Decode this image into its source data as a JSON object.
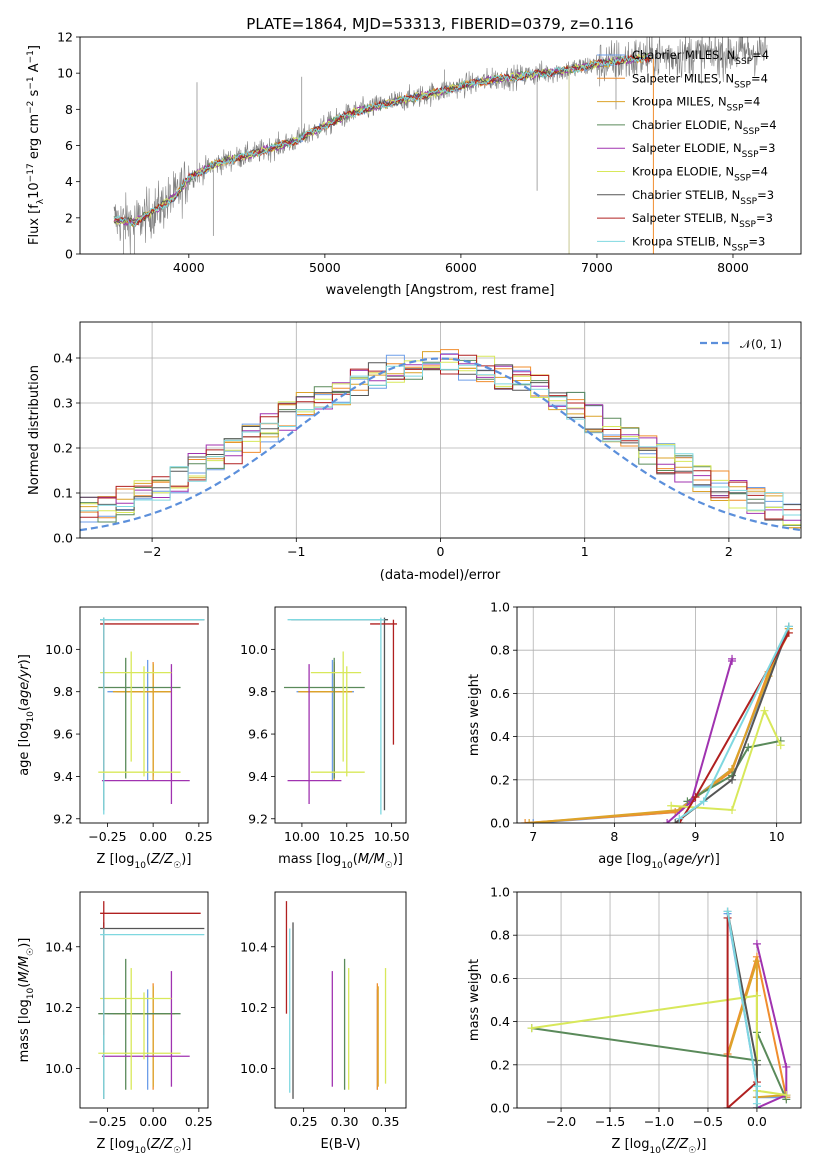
{
  "figure_title": "PLATE=1864, MJD=53313, FIBERID=0379, z=0.116",
  "colors": {
    "Chabrier MILES": "#6d9ee8",
    "Salpeter MILES": "#f08d2e",
    "Kroupa MILES": "#dca32a",
    "Chabrier ELODIE": "#5a8a5a",
    "Salpeter ELODIE": "#a033b0",
    "Kroupa ELODIE": "#d8e85a",
    "Chabrier STELIB": "#555555",
    "Salpeter STELIB": "#b02020",
    "Kroupa STELIB": "#7fd8e0",
    "data": "#808080",
    "gaussian": "#5b8fdb"
  },
  "chart_data": [
    {
      "name": "spectrum",
      "type": "line",
      "title": "PLATE=1864, MJD=53313, FIBERID=0379, z=0.116",
      "xlabel": "wavelength [Angstrom, rest frame]",
      "ylabel": "Flux [f_λ 10^-17 erg cm^-2 s^-1 A^-1]",
      "xlim": [
        3200,
        8500
      ],
      "ylim": [
        0,
        12
      ],
      "xticks": [
        "4000",
        "5000",
        "6000",
        "7000",
        "8000"
      ],
      "yticks": [
        "0",
        "2",
        "4",
        "6",
        "8",
        "10",
        "12"
      ],
      "legend_position": "right",
      "legend": [
        "Chabrier MILES, N_SSP=4",
        "Salpeter MILES, N_SSP=4",
        "Kroupa MILES, N_SSP=4",
        "Chabrier ELODIE, N_SSP=4",
        "Salpeter ELODIE, N_SSP=3",
        "Kroupa ELODIE, N_SSP=4",
        "Chabrier STELIB, N_SSP=3",
        "Salpeter STELIB, N_SSP=3",
        "Kroupa STELIB, N_SSP=3"
      ],
      "model_continuum": {
        "x": [
          3450,
          3600,
          3750,
          3900,
          4000,
          4200,
          4500,
          4800,
          5000,
          5200,
          5500,
          5800,
          6000,
          6200,
          6500,
          6800,
          7000,
          7200,
          7400
        ],
        "y": [
          1.9,
          1.75,
          2.4,
          3.2,
          4.2,
          5.0,
          5.6,
          6.3,
          7.1,
          7.8,
          8.4,
          8.9,
          9.3,
          9.6,
          9.9,
          10.2,
          10.5,
          10.7,
          10.9
        ]
      },
      "observed_x_range": [
        3450,
        8250
      ]
    },
    {
      "name": "residuals",
      "type": "line",
      "xlabel": "(data-model)/error",
      "ylabel": "Normed distribution",
      "xlim": [
        -2.5,
        2.5
      ],
      "ylim": [
        0,
        0.48
      ],
      "xticks": [
        "−2",
        "−1",
        "0",
        "1",
        "2"
      ],
      "yticks": [
        "0.0",
        "0.1",
        "0.2",
        "0.3",
        "0.4"
      ],
      "legend": [
        "𝒩(0, 1)"
      ],
      "legend_position": "top-right",
      "gaussian": {
        "mean": 0,
        "sigma": 1
      },
      "grid": true
    },
    {
      "name": "age-vs-Z",
      "type": "scatter",
      "xlabel": "Z [log10(Z/Z☉)]",
      "ylabel": "age [log10(age/yr)]",
      "xlim": [
        -0.4,
        0.3
      ],
      "ylim": [
        9.18,
        10.2
      ],
      "xticks": [
        "−0.25",
        "0.00",
        "0.25"
      ],
      "yticks": [
        "9.2",
        "9.4",
        "9.6",
        "9.8",
        "10.0"
      ],
      "points": [
        {
          "model": "Chabrier MILES",
          "x": -0.03,
          "y": 9.8,
          "xerr": [
            0.22,
            0.12
          ],
          "yerr": [
            0.42,
            0.15
          ]
        },
        {
          "model": "Salpeter MILES",
          "x": 0.0,
          "y": 9.8,
          "xerr": [
            0.2,
            0.1
          ],
          "yerr": [
            0.4,
            0.14
          ]
        },
        {
          "model": "Kroupa MILES",
          "x": 0.0,
          "y": 9.8,
          "xerr": [
            0.22,
            0.1
          ],
          "yerr": [
            0.42,
            0.13
          ]
        },
        {
          "model": "Chabrier ELODIE",
          "x": -0.15,
          "y": 9.82,
          "xerr": [
            0.15,
            0.3
          ],
          "yerr": [
            0.43,
            0.14
          ]
        },
        {
          "model": "Salpeter ELODIE",
          "x": 0.1,
          "y": 9.38,
          "xerr": [
            0.38,
            0.1
          ],
          "yerr": [
            0.11,
            0.55
          ]
        },
        {
          "model": "Kroupa ELODIE",
          "x": -0.12,
          "y": 9.89,
          "xerr": [
            0.17,
            0.22
          ],
          "yerr": [
            0.42,
            0.1
          ]
        },
        {
          "model": "Chabrier STELIB",
          "x": -0.27,
          "y": 10.14,
          "xerr": [
            0.02,
            0.55
          ],
          "yerr": [
            0.9,
            0.01
          ]
        },
        {
          "model": "Salpeter STELIB",
          "x": -0.27,
          "y": 10.12,
          "xerr": [
            0.02,
            0.52
          ],
          "yerr": [
            0.73,
            0.02
          ]
        },
        {
          "model": "Kroupa STELIB",
          "x": -0.27,
          "y": 10.14,
          "xerr": [
            0.02,
            0.55
          ],
          "yerr": [
            0.92,
            0.01
          ]
        },
        {
          "model": "Kroupa ELODIE",
          "x": -0.05,
          "y": 9.42,
          "xerr": [
            0.25,
            0.2
          ],
          "yerr": [
            0.02,
            0.5
          ]
        }
      ]
    },
    {
      "name": "age-vs-mass",
      "type": "scatter",
      "xlabel": "mass [log10(M/M☉)]",
      "ylabel": "",
      "xlim": [
        9.85,
        10.58
      ],
      "ylim": [
        9.18,
        10.2
      ],
      "xticks": [
        "10.00",
        "10.25",
        "10.50"
      ],
      "yticks": [
        "9.2",
        "9.4",
        "9.6",
        "9.8",
        "10.0"
      ],
      "points": [
        {
          "model": "Chabrier MILES",
          "x": 10.17,
          "y": 9.8,
          "xerr": [
            0.2,
            0.12
          ],
          "yerr": [
            0.42,
            0.15
          ]
        },
        {
          "model": "Salpeter MILES",
          "x": 10.18,
          "y": 9.8,
          "xerr": [
            0.2,
            0.1
          ],
          "yerr": [
            0.4,
            0.14
          ]
        },
        {
          "model": "Kroupa MILES",
          "x": 10.18,
          "y": 9.8,
          "xerr": [
            0.2,
            0.1
          ],
          "yerr": [
            0.42,
            0.13
          ]
        },
        {
          "model": "Chabrier ELODIE",
          "x": 10.18,
          "y": 9.82,
          "xerr": [
            0.28,
            0.17
          ],
          "yerr": [
            0.43,
            0.14
          ]
        },
        {
          "model": "Salpeter ELODIE",
          "x": 10.04,
          "y": 9.38,
          "xerr": [
            0.12,
            0.18
          ],
          "yerr": [
            0.11,
            0.55
          ]
        },
        {
          "model": "Kroupa ELODIE",
          "x": 10.23,
          "y": 9.89,
          "xerr": [
            0.18,
            0.1
          ],
          "yerr": [
            0.42,
            0.1
          ]
        },
        {
          "model": "Chabrier STELIB",
          "x": 10.46,
          "y": 10.14,
          "xerr": [
            0.52,
            0.02
          ],
          "yerr": [
            0.9,
            0.01
          ]
        },
        {
          "model": "Salpeter STELIB",
          "x": 10.51,
          "y": 10.12,
          "xerr": [
            0.13,
            0.02
          ],
          "yerr": [
            0.57,
            0.02
          ]
        },
        {
          "model": "Kroupa STELIB",
          "x": 10.44,
          "y": 10.14,
          "xerr": [
            0.52,
            0.02
          ],
          "yerr": [
            0.92,
            0.01
          ]
        },
        {
          "model": "Kroupa ELODIE",
          "x": 10.25,
          "y": 9.42,
          "xerr": [
            0.2,
            0.1
          ],
          "yerr": [
            0.02,
            0.5
          ]
        }
      ]
    },
    {
      "name": "mass-weight-vs-age",
      "type": "line",
      "xlabel": "age [log10(age/yr)]",
      "ylabel": "mass weight",
      "xlim": [
        6.8,
        10.3
      ],
      "ylim": [
        0,
        1.0
      ],
      "xticks": [
        "7",
        "8",
        "9",
        "10"
      ],
      "yticks": [
        "0.0",
        "0.2",
        "0.4",
        "0.6",
        "0.8",
        "1.0"
      ],
      "grid": true,
      "series": [
        {
          "model": "Chabrier MILES",
          "x": [
            7.0,
            8.75,
            9.45,
            10.15
          ],
          "y": [
            0.0,
            0.05,
            0.25,
            0.9
          ]
        },
        {
          "model": "Salpeter MILES",
          "x": [
            6.9,
            8.75,
            9.45,
            9.9,
            10.15
          ],
          "y": [
            0.0,
            0.05,
            0.24,
            0.7,
            0.88
          ]
        },
        {
          "model": "Kroupa MILES",
          "x": [
            6.95,
            8.8,
            9.45,
            9.9,
            10.15
          ],
          "y": [
            0.0,
            0.06,
            0.25,
            0.68,
            0.9
          ]
        },
        {
          "model": "Chabrier ELODIE",
          "x": [
            8.9,
            9.45,
            9.65,
            10.05
          ],
          "y": [
            0.1,
            0.22,
            0.35,
            0.38
          ]
        },
        {
          "model": "Salpeter ELODIE",
          "x": [
            8.65,
            8.95,
            9.45,
            9.45
          ],
          "y": [
            0.0,
            0.1,
            0.76,
            0.75
          ]
        },
        {
          "model": "Kroupa ELODIE",
          "x": [
            8.7,
            9.45,
            9.85,
            10.05
          ],
          "y": [
            0.08,
            0.06,
            0.52,
            0.36
          ]
        },
        {
          "model": "Chabrier STELIB",
          "x": [
            8.75,
            9.45,
            10.15
          ],
          "y": [
            0.0,
            0.2,
            0.91
          ]
        },
        {
          "model": "Salpeter STELIB",
          "x": [
            8.8,
            9.0,
            10.15
          ],
          "y": [
            0.0,
            0.12,
            0.88
          ]
        },
        {
          "model": "Kroupa STELIB",
          "x": [
            8.8,
            9.1,
            10.15
          ],
          "y": [
            0.02,
            0.1,
            0.91
          ]
        }
      ]
    },
    {
      "name": "mass-vs-Z",
      "type": "scatter",
      "xlabel": "Z [log10(Z/Z☉)]",
      "ylabel": "mass [log10(M/M☉)]",
      "xlim": [
        -0.4,
        0.3
      ],
      "ylim": [
        9.87,
        10.58
      ],
      "xticks": [
        "−0.25",
        "0.00",
        "0.25"
      ],
      "yticks": [
        "10.0",
        "10.2",
        "10.4"
      ],
      "points": [
        {
          "model": "Chabrier MILES",
          "x": -0.03,
          "y": 10.18,
          "xerr": [
            0.22,
            0.12
          ],
          "yerr": [
            0.25,
            0.08
          ]
        },
        {
          "model": "Salpeter MILES",
          "x": 0.0,
          "y": 10.18,
          "xerr": [
            0.2,
            0.12
          ],
          "yerr": [
            0.25,
            0.1
          ]
        },
        {
          "model": "Kroupa MILES",
          "x": 0.0,
          "y": 10.18,
          "xerr": [
            0.22,
            0.1
          ],
          "yerr": [
            0.24,
            0.09
          ]
        },
        {
          "model": "Chabrier ELODIE",
          "x": -0.15,
          "y": 10.18,
          "xerr": [
            0.15,
            0.3
          ],
          "yerr": [
            0.25,
            0.18
          ]
        },
        {
          "model": "Salpeter ELODIE",
          "x": 0.1,
          "y": 10.04,
          "xerr": [
            0.38,
            0.1
          ],
          "yerr": [
            0.1,
            0.28
          ]
        },
        {
          "model": "Kroupa ELODIE",
          "x": -0.12,
          "y": 10.23,
          "xerr": [
            0.17,
            0.22
          ],
          "yerr": [
            0.3,
            0.1
          ]
        },
        {
          "model": "Chabrier STELIB",
          "x": -0.27,
          "y": 10.46,
          "xerr": [
            0.02,
            0.55
          ],
          "yerr": [
            0.56,
            0.02
          ]
        },
        {
          "model": "Salpeter STELIB",
          "x": -0.27,
          "y": 10.51,
          "xerr": [
            0.02,
            0.53
          ],
          "yerr": [
            0.4,
            0.04
          ]
        },
        {
          "model": "Kroupa STELIB",
          "x": -0.27,
          "y": 10.44,
          "xerr": [
            0.02,
            0.55
          ],
          "yerr": [
            0.54,
            0.02
          ]
        },
        {
          "model": "Kroupa ELODIE",
          "x": -0.05,
          "y": 10.05,
          "xerr": [
            0.25,
            0.2
          ],
          "yerr": [
            0.02,
            0.2
          ]
        }
      ]
    },
    {
      "name": "mass-vs-ebv",
      "type": "scatter",
      "xlabel": "E(B-V)",
      "ylabel": "",
      "xlim": [
        0.215,
        0.375
      ],
      "ylim": [
        9.87,
        10.58
      ],
      "xticks": [
        "0.25",
        "0.30",
        "0.35"
      ],
      "yticks": [
        "10.0",
        "10.2",
        "10.4"
      ],
      "points": [
        {
          "model": "Chabrier MILES",
          "x": 0.34,
          "y": 10.18,
          "yerr": [
            0.25,
            0.08
          ]
        },
        {
          "model": "Salpeter MILES",
          "x": 0.34,
          "y": 10.18,
          "yerr": [
            0.25,
            0.1
          ]
        },
        {
          "model": "Kroupa MILES",
          "x": 0.341,
          "y": 10.18,
          "yerr": [
            0.24,
            0.09
          ]
        },
        {
          "model": "Chabrier ELODIE",
          "x": 0.3,
          "y": 10.18,
          "yerr": [
            0.25,
            0.18
          ]
        },
        {
          "model": "Salpeter ELODIE",
          "x": 0.285,
          "y": 10.04,
          "yerr": [
            0.1,
            0.28
          ]
        },
        {
          "model": "Kroupa ELODIE",
          "x": 0.305,
          "y": 10.23,
          "yerr": [
            0.3,
            0.1
          ]
        },
        {
          "model": "Chabrier STELIB",
          "x": 0.237,
          "y": 10.46,
          "yerr": [
            0.56,
            0.02
          ]
        },
        {
          "model": "Salpeter STELIB",
          "x": 0.229,
          "y": 10.51,
          "yerr": [
            0.33,
            0.04
          ]
        },
        {
          "model": "Kroupa STELIB",
          "x": 0.233,
          "y": 10.44,
          "yerr": [
            0.52,
            0.02
          ]
        },
        {
          "model": "Kroupa ELODIE",
          "x": 0.35,
          "y": 10.05,
          "yerr": [
            0.1,
            0.28
          ]
        }
      ]
    },
    {
      "name": "mass-weight-vs-Z",
      "type": "line",
      "xlabel": "Z [log10(Z/Z☉)]",
      "ylabel": "mass weight",
      "xlim": [
        -2.45,
        0.45
      ],
      "ylim": [
        0,
        1.0
      ],
      "xticks": [
        "−2.0",
        "−1.5",
        "−1.0",
        "−0.5",
        "0.0"
      ],
      "yticks": [
        "0.0",
        "0.2",
        "0.4",
        "0.6",
        "0.8",
        "1.0"
      ],
      "grid": true,
      "series": [
        {
          "model": "Chabrier MILES",
          "x": [
            -0.3,
            0.0,
            0.0,
            0.3
          ],
          "y": [
            0.9,
            0.1,
            0.05,
            0.05
          ]
        },
        {
          "model": "Salpeter MILES",
          "x": [
            -0.3,
            0.0,
            0.3
          ],
          "y": [
            0.25,
            0.7,
            0.05
          ]
        },
        {
          "model": "Kroupa MILES",
          "x": [
            -0.3,
            0.0,
            0.0,
            0.3
          ],
          "y": [
            0.24,
            0.68,
            0.05,
            0.06
          ]
        },
        {
          "model": "Chabrier ELODIE",
          "x": [
            -2.3,
            0.0,
            0.0,
            0.3
          ],
          "y": [
            0.37,
            0.22,
            0.35,
            0.04
          ]
        },
        {
          "model": "Salpeter ELODIE",
          "x": [
            0.0,
            0.3,
            0.3,
            0.0
          ],
          "y": [
            0.76,
            0.19,
            0.06,
            0.0
          ]
        },
        {
          "model": "Kroupa ELODIE",
          "x": [
            -2.3,
            0.0,
            0.0,
            0.3
          ],
          "y": [
            0.37,
            0.52,
            0.08,
            0.06
          ]
        },
        {
          "model": "Chabrier STELIB",
          "x": [
            -0.3,
            0.0,
            0.0
          ],
          "y": [
            0.91,
            0.2,
            0.0
          ]
        },
        {
          "model": "Salpeter STELIB",
          "x": [
            -0.3,
            -0.3,
            0.0
          ],
          "y": [
            0.88,
            0.0,
            0.12
          ]
        },
        {
          "model": "Kroupa STELIB",
          "x": [
            -0.3,
            0.0,
            0.0
          ],
          "y": [
            0.91,
            0.1,
            0.02
          ]
        }
      ]
    }
  ]
}
